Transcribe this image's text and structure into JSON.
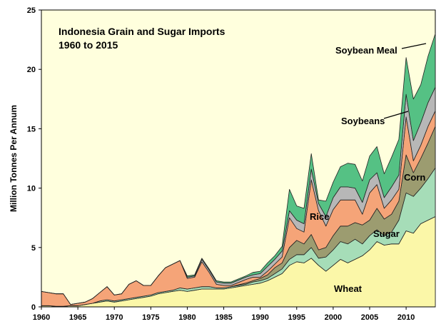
{
  "chart_data": {
    "type": "area",
    "stacked": true,
    "title": "Indonesia Grain and Sugar Imports",
    "subtitle": "1960 to 2015",
    "xlabel": "",
    "ylabel": "Million Tonnes Per Annum",
    "xlim": [
      1960,
      2014
    ],
    "ylim": [
      0,
      25
    ],
    "xticks": [
      1960,
      1965,
      1970,
      1975,
      1980,
      1985,
      1990,
      1995,
      2000,
      2005,
      2010
    ],
    "yticks": [
      0,
      5,
      10,
      15,
      20,
      25
    ],
    "grid": false,
    "plot_background": "#ffffdd",
    "x": [
      1960,
      1961,
      1962,
      1963,
      1964,
      1965,
      1966,
      1967,
      1968,
      1969,
      1970,
      1971,
      1972,
      1973,
      1974,
      1975,
      1976,
      1977,
      1978,
      1979,
      1980,
      1981,
      1982,
      1983,
      1984,
      1985,
      1986,
      1987,
      1988,
      1989,
      1990,
      1991,
      1992,
      1993,
      1994,
      1995,
      1996,
      1997,
      1998,
      1999,
      2000,
      2001,
      2002,
      2003,
      2004,
      2005,
      2006,
      2007,
      2008,
      2009,
      2010,
      2011,
      2012,
      2013,
      2014
    ],
    "series": [
      {
        "name": "Wheat",
        "color": "#fbf7a8",
        "values": [
          0.1,
          0.1,
          0.05,
          0.05,
          0.1,
          0.1,
          0.2,
          0.3,
          0.4,
          0.5,
          0.4,
          0.5,
          0.6,
          0.7,
          0.8,
          0.9,
          1.1,
          1.2,
          1.3,
          1.4,
          1.3,
          1.4,
          1.5,
          1.5,
          1.5,
          1.5,
          1.6,
          1.7,
          1.8,
          1.9,
          2.0,
          2.2,
          2.5,
          2.8,
          3.5,
          3.8,
          3.7,
          4.1,
          3.5,
          3.0,
          3.5,
          4.0,
          3.7,
          4.0,
          4.3,
          4.8,
          5.5,
          5.2,
          5.3,
          5.3,
          6.4,
          6.2,
          7.0,
          7.3,
          7.6
        ]
      },
      {
        "name": "Sugar",
        "color": "#a6ddb8",
        "values": [
          0,
          0,
          0,
          0,
          0,
          0,
          0,
          0,
          0.1,
          0.1,
          0.1,
          0.1,
          0.1,
          0.1,
          0.1,
          0.1,
          0.1,
          0.1,
          0.1,
          0.2,
          0.2,
          0.2,
          0.2,
          0.2,
          0.1,
          0.1,
          0.1,
          0.1,
          0.1,
          0.2,
          0.2,
          0.2,
          0.3,
          0.4,
          0.5,
          0.6,
          0.7,
          0.9,
          0.6,
          1.2,
          1.3,
          1.5,
          1.6,
          1.7,
          1.0,
          1.2,
          1.0,
          0.8,
          1.0,
          2.0,
          3.2,
          3.1,
          3.0,
          3.5,
          4.1
        ]
      },
      {
        "name": "Corn",
        "color": "#9c9c70",
        "values": [
          0,
          0,
          0,
          0,
          0,
          0,
          0,
          0,
          0,
          0,
          0,
          0,
          0,
          0,
          0,
          0,
          0,
          0,
          0,
          0,
          0,
          0,
          0,
          0,
          0,
          0,
          0,
          0.05,
          0.1,
          0.1,
          0.2,
          0.3,
          0.5,
          0.5,
          1.0,
          1.2,
          0.9,
          1.1,
          0.7,
          0.8,
          1.2,
          1.3,
          1.5,
          1.4,
          1.6,
          1.3,
          1.8,
          1.4,
          1.5,
          1.6,
          3.2,
          2.0,
          2.5,
          3.0,
          3.5
        ]
      },
      {
        "name": "Rice",
        "color": "#f5a478",
        "values": [
          1.2,
          1.1,
          1.05,
          1.05,
          0.1,
          0.2,
          0.2,
          0.4,
          0.7,
          1.1,
          0.5,
          0.5,
          1.2,
          1.4,
          0.9,
          0.8,
          1.4,
          2.0,
          2.2,
          2.3,
          0.9,
          0.9,
          2.1,
          1.2,
          0.3,
          0.2,
          0.1,
          0.2,
          0.3,
          0.3,
          0.1,
          0.3,
          0.3,
          0.5,
          2.5,
          1.0,
          1.0,
          4.6,
          3.3,
          1.8,
          2.2,
          2.2,
          2.2,
          1.9,
          0.9,
          2.3,
          2.0,
          0.9,
          1.2,
          1.0,
          3.2,
          1.0,
          1.1,
          1.4,
          1.3
        ]
      },
      {
        "name": "Soybeans",
        "color": "#b7b7b7",
        "values": [
          0,
          0,
          0,
          0,
          0,
          0,
          0,
          0,
          0,
          0,
          0,
          0,
          0,
          0,
          0,
          0,
          0,
          0,
          0,
          0,
          0.1,
          0.1,
          0.2,
          0.2,
          0.2,
          0.2,
          0.2,
          0.2,
          0.2,
          0.2,
          0.3,
          0.4,
          0.4,
          0.5,
          0.6,
          0.7,
          0.7,
          0.9,
          0.6,
          0.8,
          1.0,
          1.1,
          1.1,
          1.0,
          1.0,
          1.1,
          1.0,
          0.9,
          1.1,
          1.2,
          1.9,
          1.7,
          1.9,
          2.0,
          2.0
        ]
      },
      {
        "name": "Soybean Meal",
        "color": "#55c184",
        "values": [
          0,
          0,
          0,
          0,
          0,
          0,
          0,
          0,
          0,
          0,
          0,
          0,
          0,
          0,
          0,
          0,
          0,
          0,
          0,
          0,
          0.1,
          0.1,
          0.1,
          0.1,
          0.1,
          0.1,
          0.1,
          0.1,
          0.1,
          0.2,
          0.2,
          0.3,
          0.3,
          0.4,
          1.8,
          1.2,
          1.3,
          1.3,
          0.3,
          1.3,
          1.3,
          1.7,
          2.0,
          2.0,
          1.8,
          2.0,
          2.2,
          2.0,
          2.5,
          3.0,
          3.1,
          3.5,
          3.2,
          3.9,
          4.5
        ]
      }
    ]
  }
}
